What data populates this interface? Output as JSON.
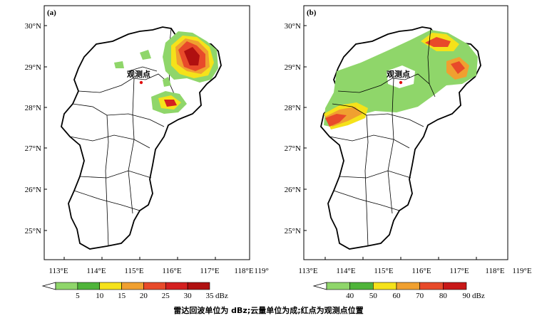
{
  "panels": [
    {
      "label": "(a)",
      "station_label": "观测点",
      "lon_ticks": [
        "113°E",
        "114°E",
        "115°E",
        "116°E",
        "117°E",
        "118°E",
        "119°E"
      ],
      "lat_ticks": [
        "30°N",
        "29°N",
        "28°N",
        "27°N",
        "26°N",
        "25°N"
      ],
      "colorbar": {
        "values": [
          "5",
          "10",
          "15",
          "20",
          "25",
          "30",
          "35"
        ],
        "unit": "dBz",
        "colors": [
          "#ffffff",
          "#8fd66a",
          "#4fb43a",
          "#f5e21a",
          "#f0a030",
          "#e84a2a",
          "#d42020",
          "#b01010"
        ]
      }
    },
    {
      "label": "(b)",
      "station_label": "观测点",
      "lon_ticks": [
        "113°E",
        "114°E",
        "115°E",
        "116°E",
        "117°E",
        "118°E",
        "119°E"
      ],
      "lat_ticks": [
        "30°N",
        "29°N",
        "28°N",
        "27°N",
        "26°N",
        "25°N"
      ],
      "colorbar": {
        "values": [
          "40",
          "50",
          "60",
          "70",
          "80",
          "90"
        ],
        "unit": "dBz",
        "colors": [
          "#ffffff",
          "#8fd66a",
          "#4fb43a",
          "#f5e21a",
          "#f0a030",
          "#e84a2a",
          "#c81818"
        ]
      }
    }
  ],
  "caption": "雷达回波单位为 dBz;云量单位为成;红点为观测点位置"
}
